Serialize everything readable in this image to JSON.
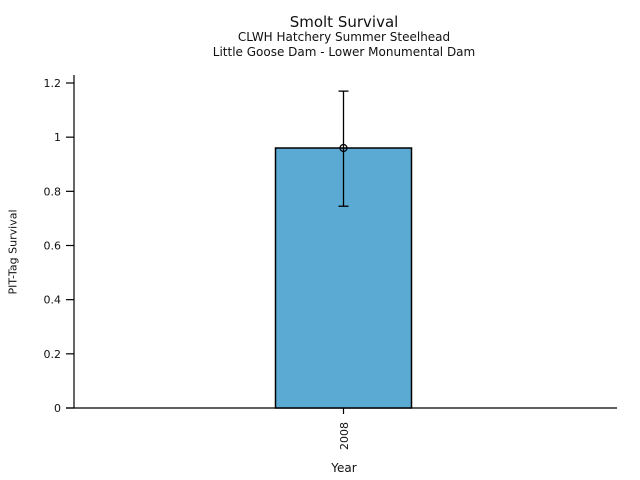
{
  "chart_data": {
    "type": "bar",
    "title": "Smolt Survival",
    "subtitle_lines": [
      "CLWH Hatchery Summer Steelhead",
      "Little Goose Dam - Lower Monumental Dam"
    ],
    "xlabel": "Year",
    "ylabel": "PIT-Tag Survival",
    "categories": [
      "2008"
    ],
    "values": [
      0.96
    ],
    "error_low": [
      0.745
    ],
    "error_high": [
      1.17
    ],
    "marker": "open-circle",
    "ylim": [
      0,
      1.2
    ],
    "yticks": [
      {
        "value": 0.0,
        "label": "0"
      },
      {
        "value": 0.2,
        "label": "0.2"
      },
      {
        "value": 0.4,
        "label": "0.4"
      },
      {
        "value": 0.6,
        "label": "0.6"
      },
      {
        "value": 0.8,
        "label": "0.8"
      },
      {
        "value": 1.0,
        "label": "1"
      },
      {
        "value": 1.2,
        "label": "1.2"
      }
    ],
    "grid": false,
    "legend": "none",
    "colors": {
      "bar_fill": "#5AAAD4",
      "bar_edge": "#000000",
      "axis": "#000000",
      "background": "#ffffff"
    }
  }
}
